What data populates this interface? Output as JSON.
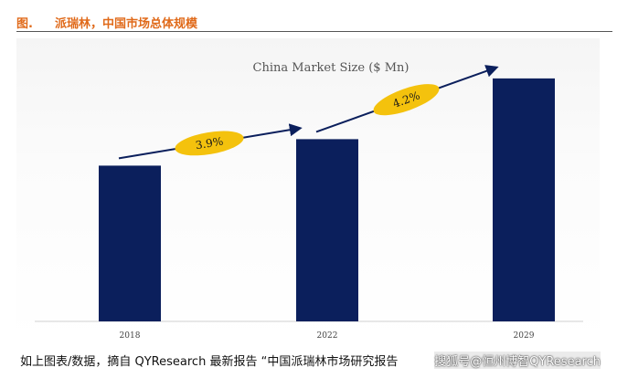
{
  "header": {
    "figure_label": "图.",
    "title": "派瑞林，中国市场总体规模"
  },
  "chart_data": {
    "type": "bar",
    "title": "China Market Size ($ Mn)",
    "categories": [
      "2018",
      "2022",
      "2029"
    ],
    "values": [
      100,
      117,
      156
    ],
    "ylim": [
      0,
      170
    ],
    "grid": false,
    "legend": "none",
    "annotations": [
      {
        "label": "3.9%",
        "from": "2018",
        "to": "2022"
      },
      {
        "label": "4.2%",
        "from": "2022",
        "to": "2029"
      }
    ],
    "colors": {
      "bar": "#0b1f5c",
      "arrow": "#0b1f5c",
      "badge": "#f4c20d"
    }
  },
  "footer": {
    "source_text": "如上图表/数据，摘自 QYResearch 最新报告 “中国派瑞林市场研究报告",
    "watermark": "搜狐号@恒州博智QYResearch"
  }
}
